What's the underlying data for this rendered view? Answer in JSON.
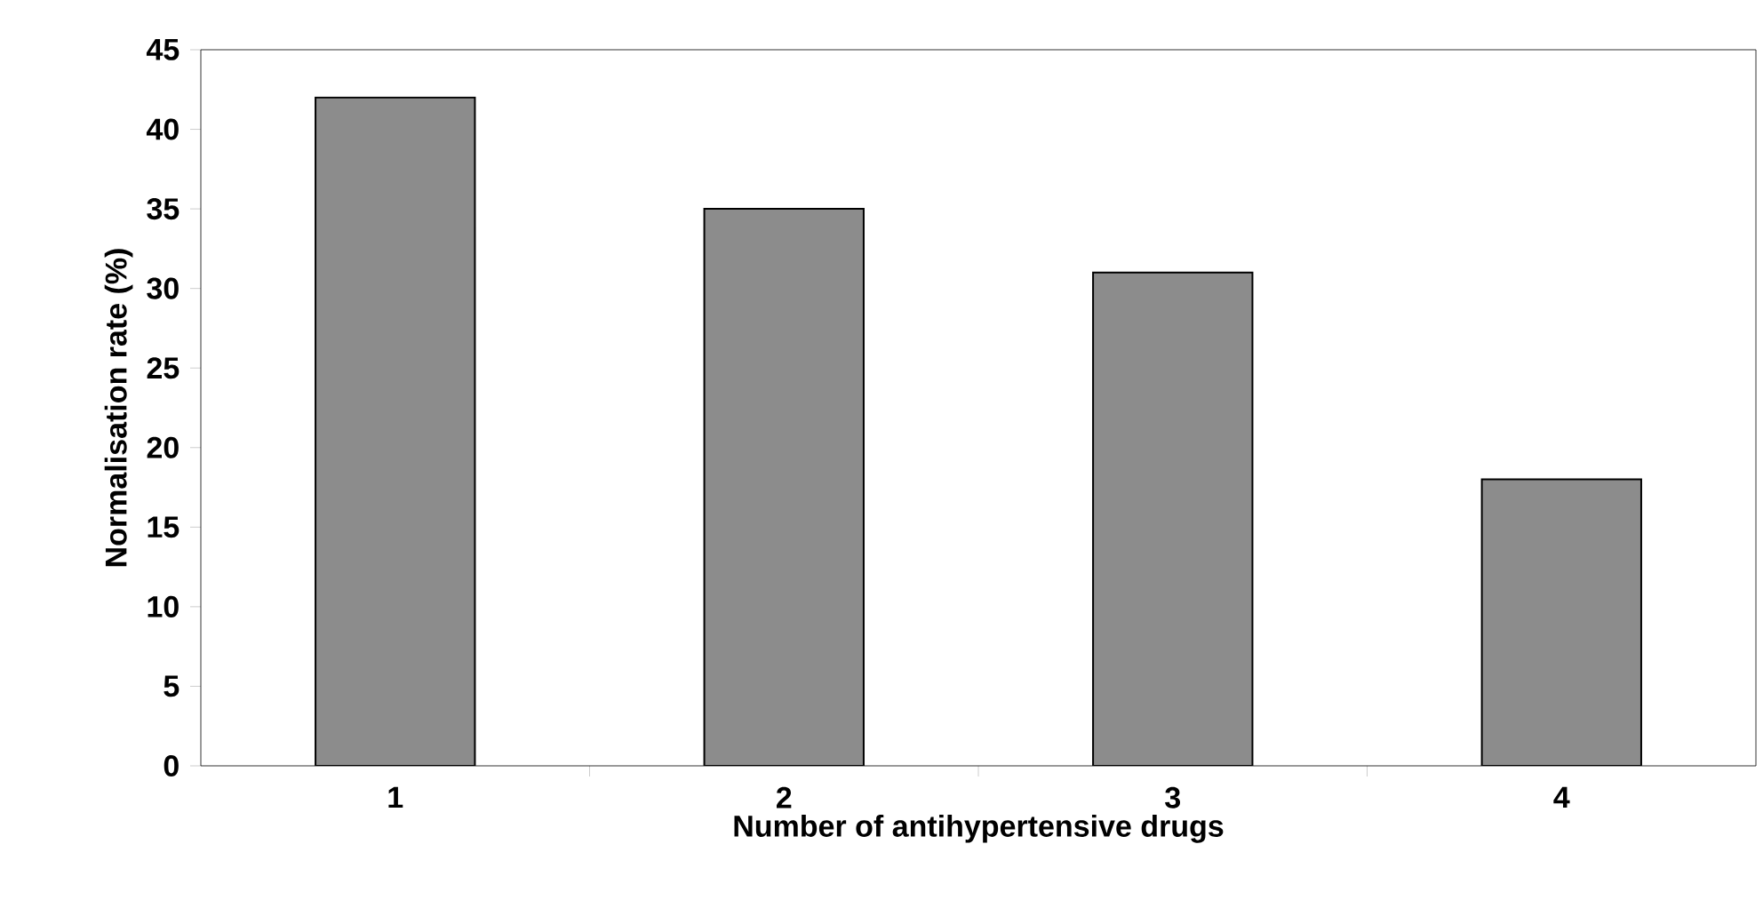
{
  "chart_data": {
    "type": "bar",
    "xlabel": "Number of antihypertensive drugs",
    "ylabel": "Normalisation rate (%)",
    "categories": [
      "1",
      "2",
      "3",
      "4"
    ],
    "values": [
      42,
      35,
      31,
      18
    ],
    "color": "#8c8c8c",
    "ylim": [
      0,
      45
    ],
    "yticks": [
      0,
      5,
      10,
      15,
      20,
      25,
      30,
      35,
      40,
      45
    ]
  }
}
